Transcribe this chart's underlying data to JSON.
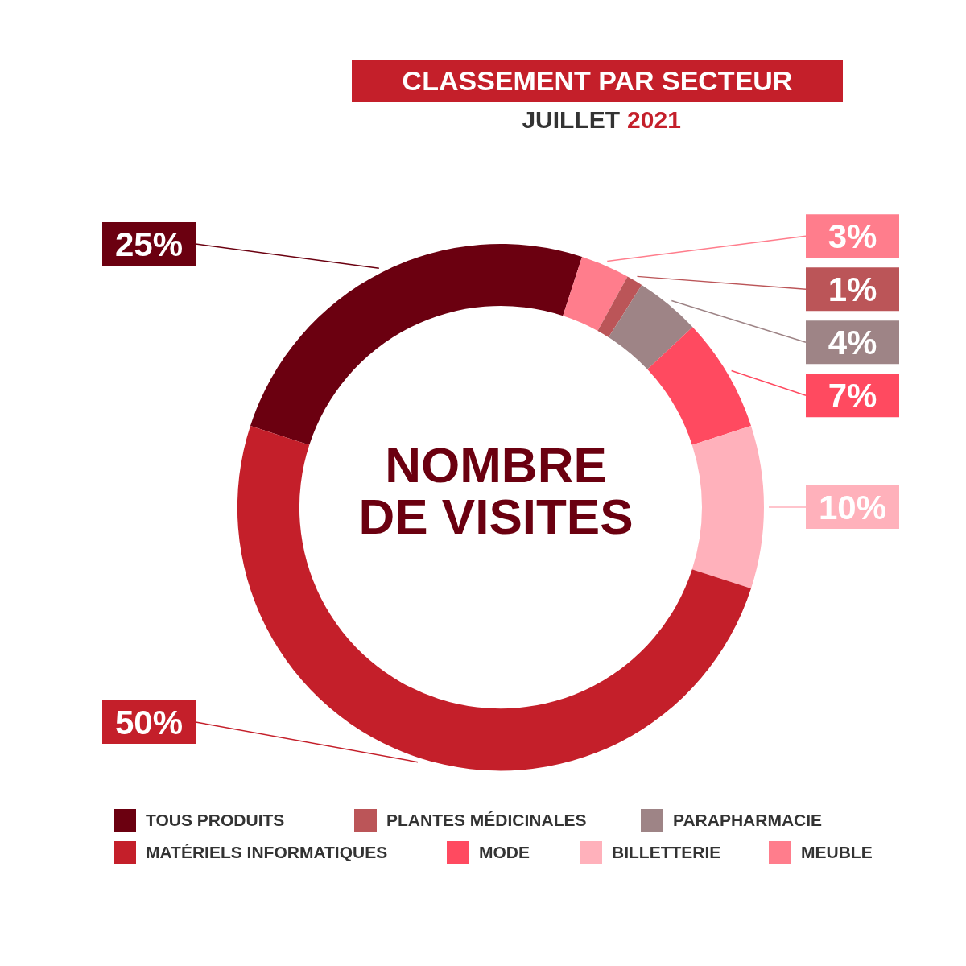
{
  "chart_data": {
    "type": "donut",
    "title": "CLASSEMENT PAR SECTEUR",
    "subtitle": "JUILLET 2021",
    "categories": [
      "TOUS PRODUITS",
      "MEUBLE",
      "PLANTES MÉDICINALES",
      "PARAPHARMACIE",
      "MODE",
      "BILLETTERIE",
      "MATÉRIELS INFORMATIQUES"
    ],
    "values": [
      25,
      3,
      1,
      4,
      7,
      10,
      50
    ],
    "colors": [
      "#6b0010",
      "#ff7d8c",
      "#bb5558",
      "#9e8486",
      "#ff4a60",
      "#ffb1bb",
      "#c41f2a"
    ],
    "value_labels": [
      "25%",
      "3%",
      "1%",
      "4%",
      "7%",
      "10%",
      "50%"
    ],
    "legend": "bottom",
    "annotations": [
      "NOMBRE DE VISITES"
    ]
  }
}
